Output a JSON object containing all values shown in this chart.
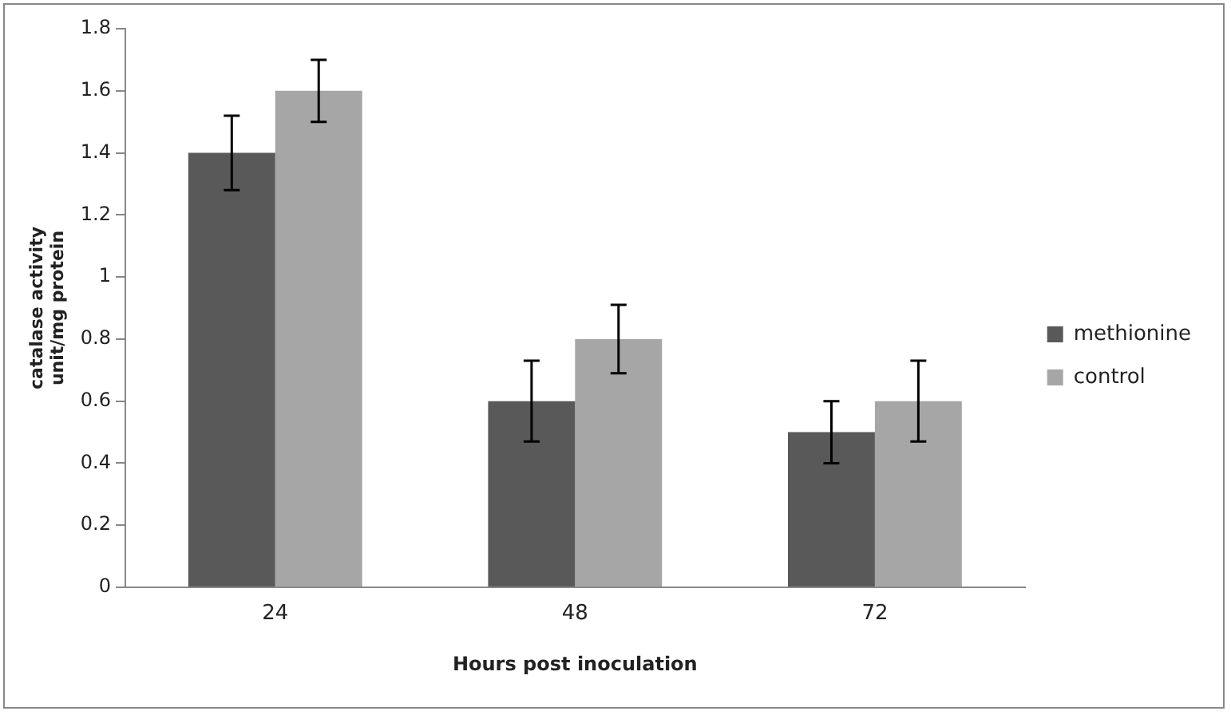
{
  "chart_data": {
    "type": "bar",
    "xlabel": "Hours post inoculation",
    "ylabel": "catalase activity unit/mg protein",
    "categories": [
      "24",
      "48",
      "72"
    ],
    "series": [
      {
        "name": "methionine",
        "color": "#595959",
        "values": [
          1.4,
          0.6,
          0.5
        ],
        "errors": [
          0.12,
          0.13,
          0.1
        ]
      },
      {
        "name": "control",
        "color": "#a6a6a6",
        "values": [
          1.6,
          0.8,
          0.6
        ],
        "errors": [
          0.1,
          0.11,
          0.13
        ]
      }
    ],
    "ylim": [
      0,
      1.8
    ],
    "yticks": [
      0,
      0.2,
      0.4,
      0.6,
      0.8,
      1,
      1.2,
      1.4,
      1.6,
      1.8
    ],
    "grid": false,
    "legend": "right"
  }
}
